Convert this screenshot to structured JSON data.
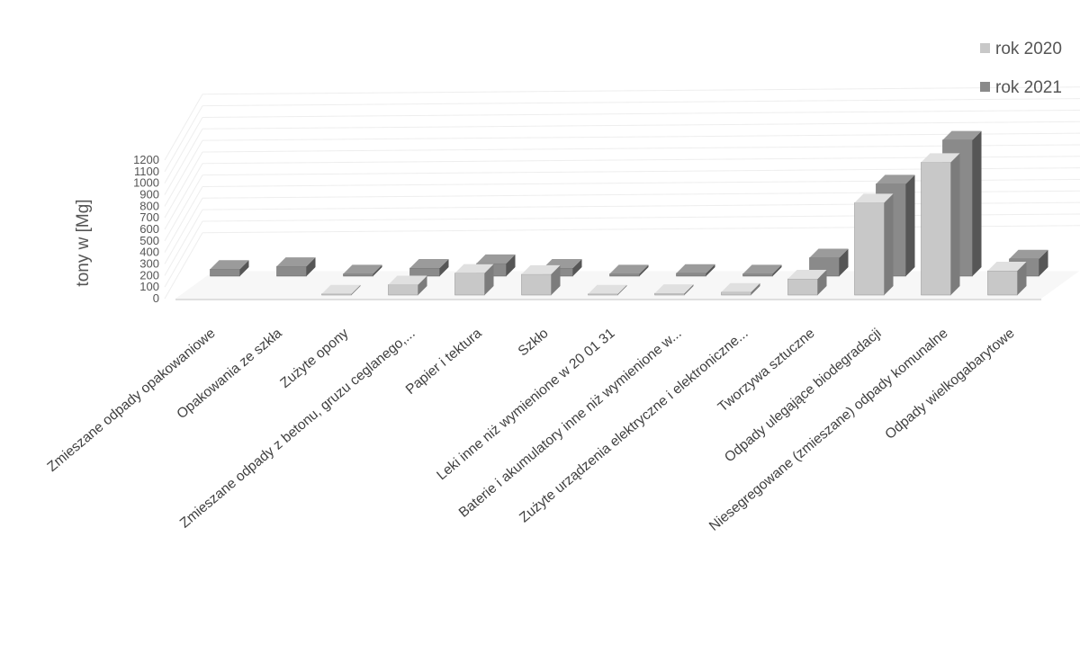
{
  "chart_data": {
    "type": "bar",
    "title": "",
    "xlabel": "",
    "ylabel": "tony w [Mg]",
    "ylim": [
      0,
      1200
    ],
    "yticks": [
      "0",
      "100",
      "200",
      "300",
      "400",
      "500",
      "600",
      "700",
      "800",
      "900",
      "1000",
      "1100",
      "1200"
    ],
    "grid": true,
    "legend_position": "top-right",
    "categories": [
      "Zmieszane odpady opakowaniowe",
      "Opakowania ze szkła",
      "Zużyte opony",
      "Zmieszane odpady z betonu, gruzu ceglanego,...",
      "Papier i tektura",
      "Szkło",
      "Leki inne niż wymienione w 20 01 31",
      "Baterie i akumulatory inne niż wymienione w...",
      "Zużyte urządzenia elektryczne i elektroniczne...",
      "Tworzywa sztuczne",
      "Odpady ulegające biodegradacji",
      "Niesegregowane (zmieszane) odpady komunalne",
      "Odpady wielkogabarytowe"
    ],
    "series": [
      {
        "name": "rok 2020",
        "color": "#c8c8c8",
        "values": [
          0,
          0,
          10,
          90,
          190,
          180,
          10,
          15,
          25,
          140,
          800,
          1150,
          210
        ]
      },
      {
        "name": "rok 2021",
        "color": "#8a8a8a",
        "values": [
          60,
          85,
          20,
          70,
          110,
          70,
          20,
          25,
          20,
          160,
          800,
          1180,
          150
        ]
      }
    ]
  }
}
